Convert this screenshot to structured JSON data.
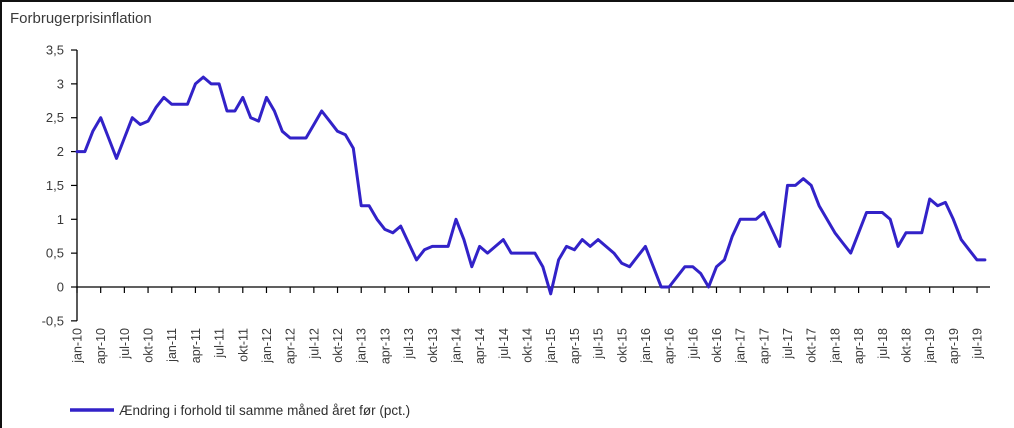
{
  "chart_data": {
    "type": "line",
    "title": "Forbrugerprisinflation",
    "x_frequency": "monthly",
    "x_start_label": "jan-10",
    "x_end_label": "aug-19",
    "x_tick_every_months": 3,
    "x_tick_labels": [
      "jan-10",
      "apr-10",
      "jul-10",
      "okt-10",
      "jan-11",
      "apr-11",
      "jul-11",
      "okt-11",
      "jan-12",
      "apr-12",
      "jul-12",
      "okt-12",
      "jan-13",
      "apr-13",
      "jul-13",
      "okt-13",
      "jan-14",
      "apr-14",
      "jul-14",
      "okt-14",
      "jan-15",
      "apr-15",
      "jul-15",
      "okt-15",
      "jan-16",
      "apr-16",
      "jul-16",
      "okt-16",
      "jan-17",
      "apr-17",
      "jul-17",
      "okt-17",
      "jan-18",
      "apr-18",
      "jul-18",
      "okt-18",
      "jan-19",
      "apr-19",
      "jul-19"
    ],
    "ylim": [
      -0.5,
      3.5
    ],
    "y_tick_values": [
      3.5,
      3,
      2.5,
      2,
      1.5,
      1,
      0.5,
      0,
      -0.5
    ],
    "y_tick_labels": [
      "3,5",
      "3",
      "2,5",
      "2",
      "1,5",
      "1",
      "0,5",
      "0",
      "-0,5"
    ],
    "decimal_separator": ",",
    "grid": false,
    "legend_position": "bottom-left",
    "series": [
      {
        "name": "Ændring i forhold til samme måned året før (pct.)",
        "color": "#3222C8",
        "values": [
          2.0,
          2.0,
          2.3,
          2.5,
          2.2,
          1.9,
          2.2,
          2.5,
          2.4,
          2.45,
          2.65,
          2.8,
          2.7,
          2.7,
          2.7,
          3.0,
          3.1,
          3.0,
          3.0,
          2.6,
          2.6,
          2.8,
          2.5,
          2.45,
          2.8,
          2.6,
          2.3,
          2.2,
          2.2,
          2.2,
          2.4,
          2.6,
          2.45,
          2.3,
          2.25,
          2.05,
          1.2,
          1.2,
          1.0,
          0.85,
          0.8,
          0.9,
          0.65,
          0.4,
          0.55,
          0.6,
          0.6,
          0.6,
          1.0,
          0.7,
          0.3,
          0.6,
          0.5,
          0.6,
          0.7,
          0.5,
          0.5,
          0.5,
          0.5,
          0.3,
          -0.1,
          0.4,
          0.6,
          0.55,
          0.7,
          0.6,
          0.7,
          0.6,
          0.5,
          0.35,
          0.3,
          0.45,
          0.6,
          0.3,
          0.0,
          0.0,
          0.15,
          0.3,
          0.3,
          0.2,
          0.0,
          0.3,
          0.4,
          0.75,
          1.0,
          1.0,
          1.0,
          1.1,
          0.85,
          0.6,
          1.5,
          1.5,
          1.6,
          1.5,
          1.2,
          1.0,
          0.8,
          0.65,
          0.5,
          0.8,
          1.1,
          1.1,
          1.1,
          1.0,
          0.6,
          0.8,
          0.8,
          0.8,
          1.3,
          1.2,
          1.25,
          1.0,
          0.7,
          0.55,
          0.4,
          0.4
        ]
      }
    ]
  }
}
